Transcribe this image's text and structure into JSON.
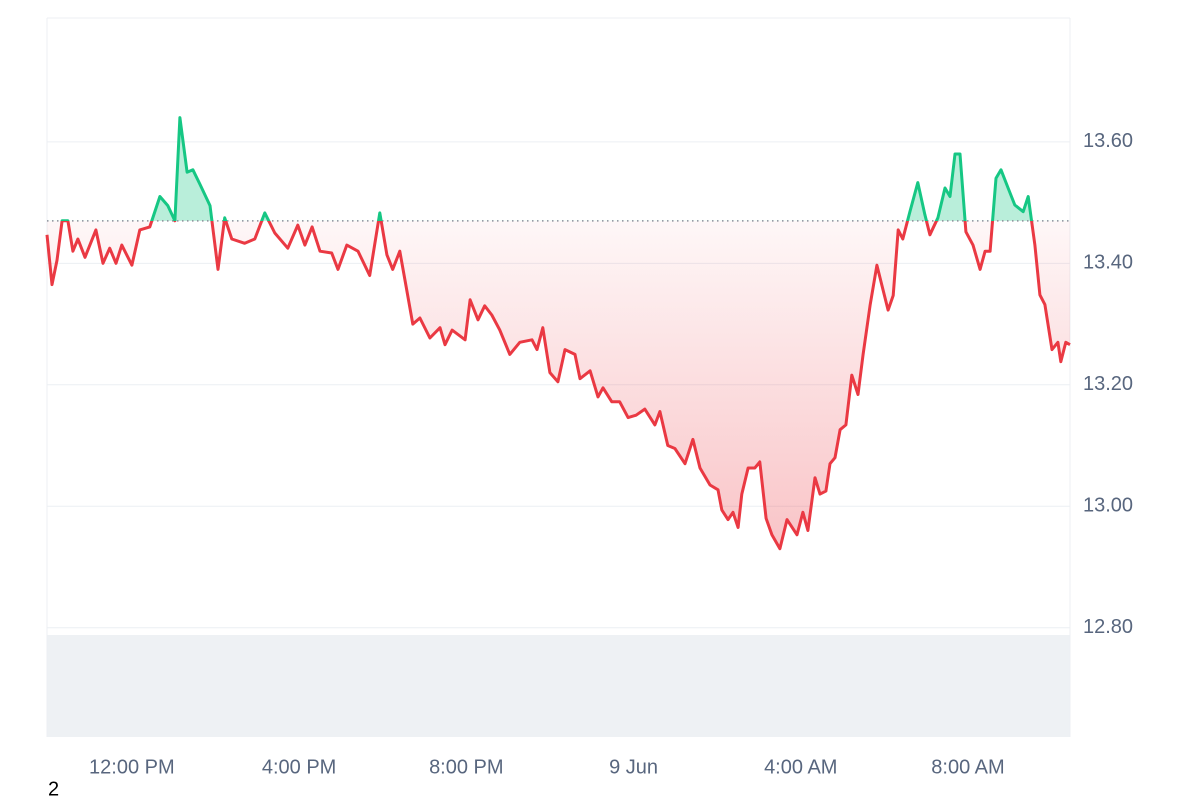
{
  "chart_data": {
    "type": "line",
    "x": [
      9.97,
      10.09,
      10.21,
      10.33,
      10.47,
      10.59,
      10.71,
      10.88,
      11.14,
      11.31,
      11.47,
      11.62,
      11.76,
      12.0,
      12.19,
      12.43,
      12.67,
      12.86,
      13.03,
      13.15,
      13.32,
      13.46,
      13.63,
      13.87,
      14.06,
      14.22,
      14.39,
      14.7,
      14.94,
      15.18,
      15.42,
      15.73,
      15.97,
      16.14,
      16.31,
      16.5,
      16.78,
      16.93,
      17.14,
      17.41,
      17.69,
      17.93,
      18.1,
      18.24,
      18.41,
      18.53,
      18.72,
      18.89,
      19.13,
      19.37,
      19.49,
      19.66,
      19.97,
      20.09,
      20.28,
      20.44,
      20.61,
      20.8,
      21.04,
      21.28,
      21.57,
      21.69,
      21.83,
      22.0,
      22.19,
      22.36,
      22.6,
      22.72,
      22.96,
      23.15,
      23.27,
      23.48,
      23.67,
      23.87,
      24.06,
      24.27,
      24.51,
      24.63,
      24.82,
      24.99,
      25.23,
      25.42,
      25.59,
      25.83,
      26.02,
      26.11,
      26.26,
      26.38,
      26.5,
      26.59,
      26.74,
      26.9,
      27.02,
      27.17,
      27.31,
      27.5,
      27.67,
      27.91,
      28.05,
      28.17,
      28.34,
      28.46,
      28.6,
      28.7,
      28.82,
      28.94,
      29.08,
      29.22,
      29.37,
      29.49,
      29.66,
      29.82,
      29.97,
      30.09,
      30.21,
      30.33,
      30.44,
      30.61,
      30.8,
      30.97,
      31.09,
      31.28,
      31.45,
      31.57,
      31.69,
      31.81,
      31.95,
      32.12,
      32.29,
      32.41,
      32.53,
      32.67,
      32.79,
      32.96,
      33.12,
      33.32,
      33.44,
      33.6,
      33.72,
      33.84,
      34.01,
      34.15,
      34.22,
      34.34,
      34.44
    ],
    "values": [
      13.447,
      13.365,
      13.405,
      13.47,
      13.47,
      13.42,
      13.44,
      13.41,
      13.455,
      13.4,
      13.425,
      13.4,
      13.43,
      13.397,
      13.455,
      13.46,
      13.51,
      13.495,
      13.47,
      13.64,
      13.55,
      13.554,
      13.53,
      13.495,
      13.39,
      13.475,
      13.44,
      13.433,
      13.44,
      13.483,
      13.45,
      13.425,
      13.463,
      13.43,
      13.46,
      13.42,
      13.417,
      13.39,
      13.43,
      13.42,
      13.38,
      13.483,
      13.414,
      13.39,
      13.42,
      13.373,
      13.3,
      13.31,
      13.277,
      13.294,
      13.266,
      13.29,
      13.274,
      13.34,
      13.307,
      13.33,
      13.315,
      13.29,
      13.25,
      13.27,
      13.274,
      13.258,
      13.294,
      13.22,
      13.205,
      13.258,
      13.25,
      13.21,
      13.223,
      13.18,
      13.195,
      13.172,
      13.172,
      13.146,
      13.15,
      13.16,
      13.134,
      13.156,
      13.1,
      13.095,
      13.07,
      13.11,
      13.063,
      13.035,
      13.027,
      12.994,
      12.978,
      12.99,
      12.965,
      13.02,
      13.063,
      13.063,
      13.073,
      12.98,
      12.953,
      12.93,
      12.978,
      12.953,
      12.99,
      12.96,
      13.047,
      13.02,
      13.025,
      13.07,
      13.08,
      13.126,
      13.134,
      13.216,
      13.184,
      13.25,
      13.332,
      13.397,
      13.356,
      13.323,
      13.347,
      13.455,
      13.44,
      13.485,
      13.533,
      13.48,
      13.447,
      13.475,
      13.524,
      13.51,
      13.58,
      13.58,
      13.452,
      13.43,
      13.39,
      13.42,
      13.42,
      13.54,
      13.554,
      13.524,
      13.496,
      13.485,
      13.51,
      13.43,
      13.348,
      13.332,
      13.258,
      13.27,
      13.238,
      13.27,
      13.266
    ],
    "baseline": 13.47,
    "up_color": "#16c784",
    "down_color": "#ea3943",
    "xlim": [
      9.97,
      34.44
    ],
    "xticks": [
      {
        "value": 12,
        "label": "12:00 PM"
      },
      {
        "value": 16,
        "label": "4:00 PM"
      },
      {
        "value": 20,
        "label": "8:00 PM"
      },
      {
        "value": 24,
        "label": "9 Jun"
      },
      {
        "value": 28,
        "label": "4:00 AM"
      },
      {
        "value": 32,
        "label": "8:00 AM"
      }
    ],
    "ylim": [
      12.62,
      13.804
    ],
    "yticks": [
      {
        "value": 12.8,
        "label": "12.80"
      },
      {
        "value": 13.0,
        "label": "13.00"
      },
      {
        "value": 13.2,
        "label": "13.20"
      },
      {
        "value": 13.4,
        "label": "13.40"
      },
      {
        "value": 13.6,
        "label": "13.60"
      }
    ],
    "grid": true,
    "footer": "2"
  }
}
